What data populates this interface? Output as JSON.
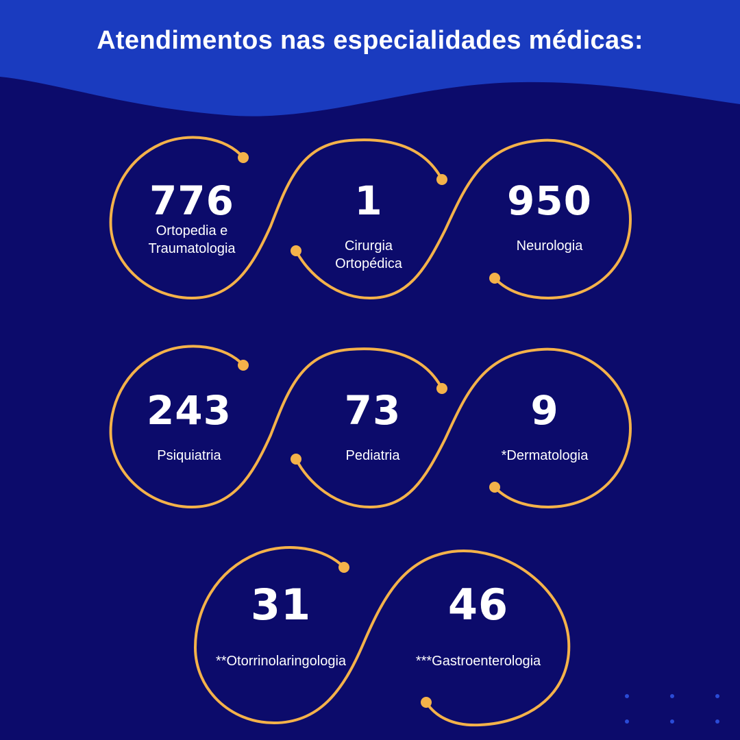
{
  "title": "Atendimentos nas especialidades médicas:",
  "colors": {
    "background": "#0c0b6b",
    "header_wave": "#1a3bbf",
    "curve": "#f4b24a",
    "text": "#ffffff",
    "dots": "#2a4bd6"
  },
  "stats": [
    {
      "value": "776",
      "label": "Ortopedia e Traumatologia"
    },
    {
      "value": "1",
      "label": "Cirurgia Ortopédica"
    },
    {
      "value": "950",
      "label": "Neurologia"
    },
    {
      "value": "243",
      "label": "Psiquiatria"
    },
    {
      "value": "73",
      "label": "Pediatria"
    },
    {
      "value": "9",
      "label": "*Dermatologia"
    },
    {
      "value": "31",
      "label": "**Otorrinolaringologia"
    },
    {
      "value": "46",
      "label": "***Gastroenterologia"
    }
  ]
}
